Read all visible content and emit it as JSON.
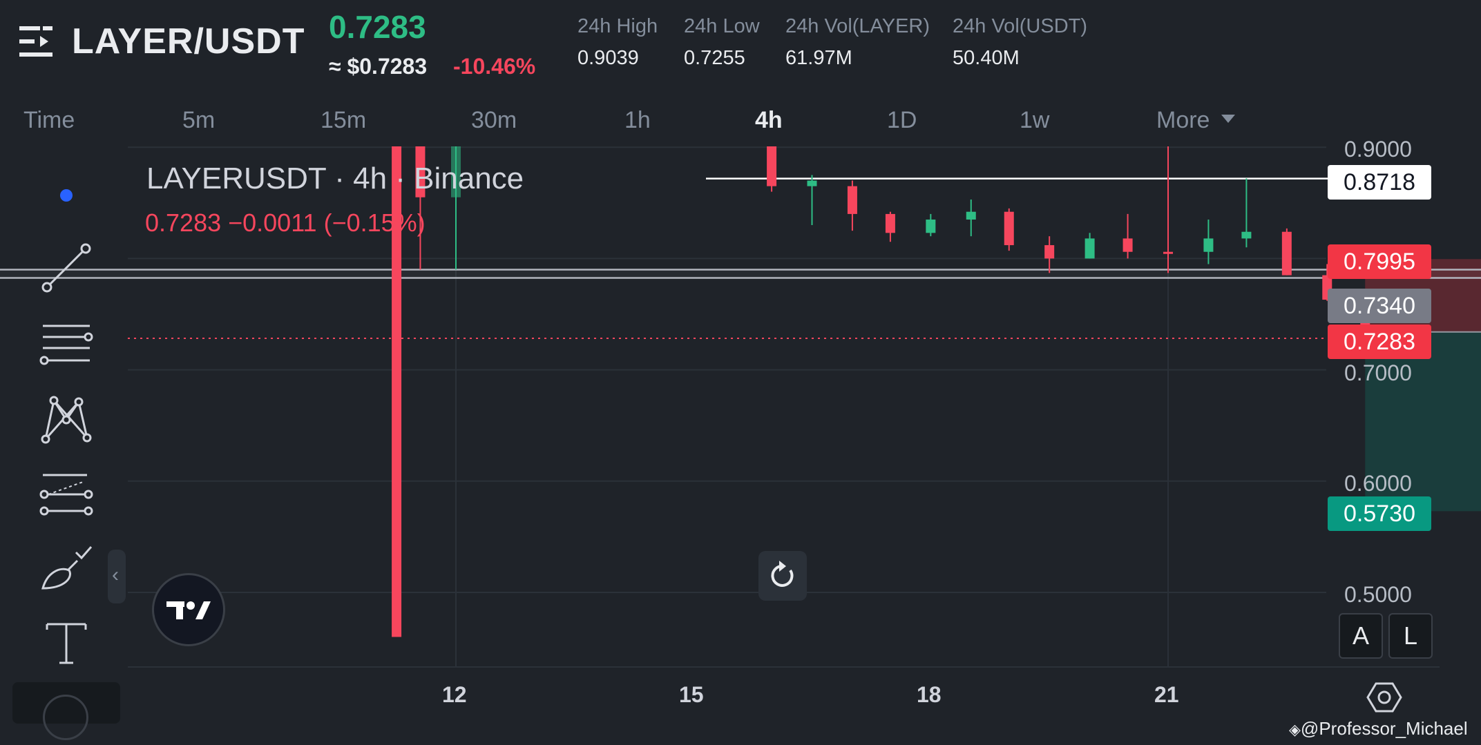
{
  "header": {
    "pair": "LAYER/USDT",
    "last_price": "0.7283",
    "usd_price": "≈ $0.7283",
    "change_pct": "-10.46%",
    "stats": [
      {
        "label": "24h High",
        "value": "0.9039"
      },
      {
        "label": "24h Low",
        "value": "0.7255"
      },
      {
        "label": "24h Vol(LAYER)",
        "value": "61.97M"
      },
      {
        "label": "24h Vol(USDT)",
        "value": "50.40M"
      }
    ]
  },
  "intervals": {
    "items": [
      "Time",
      "5m",
      "15m",
      "30m",
      "1h",
      "4h",
      "1D",
      "1w",
      "More"
    ],
    "active": "4h"
  },
  "legend": {
    "title": "LAYERUSDT · 4h · Binance",
    "values": "0.7283  −0.0011 (−0.15%)"
  },
  "price_axis": {
    "ticks": [
      "0.9000",
      "0.7000",
      "0.6000",
      "0.5000"
    ],
    "badges": [
      {
        "value": "0.8718",
        "color": "#ffffff",
        "text_color": "#131722"
      },
      {
        "value": "0.7995",
        "color": "#f23645"
      },
      {
        "value": "0.7340",
        "color": "#787b86"
      },
      {
        "value": "0.7283",
        "color": "#f23645"
      },
      {
        "value": "0.5730",
        "color": "#089981"
      }
    ]
  },
  "time_axis": {
    "labels": [
      "12",
      "15",
      "18",
      "21"
    ]
  },
  "scale_buttons": [
    "A",
    "L"
  ],
  "watermark": "@Professor_Michael",
  "colors": {
    "up": "#2ebd85",
    "down": "#f6465d",
    "background": "#1f2329"
  },
  "chart_data": {
    "type": "candlestick",
    "interval": "4h",
    "y_range": [
      0.46,
      0.905
    ],
    "x_range": [
      10.2,
      22.0
    ],
    "candles": [
      {
        "t": 11.75,
        "o": 0.905,
        "h": 0.905,
        "l": 0.46,
        "c": 0.46
      },
      {
        "t": 11.85,
        "o": 0.905,
        "h": 0.905,
        "l": 0.79,
        "c": 0.855
      },
      {
        "t": 12.0,
        "o": 0.855,
        "h": 0.905,
        "l": 0.79,
        "c": 0.905
      },
      {
        "t": 13.33,
        "o": 0.905,
        "h": 0.905,
        "l": 0.86,
        "c": 0.865
      },
      {
        "t": 13.5,
        "o": 0.865,
        "h": 0.875,
        "l": 0.83,
        "c": 0.87
      },
      {
        "t": 13.67,
        "o": 0.865,
        "h": 0.87,
        "l": 0.825,
        "c": 0.84
      },
      {
        "t": 13.83,
        "o": 0.84,
        "h": 0.842,
        "l": 0.815,
        "c": 0.823
      },
      {
        "t": 14.0,
        "o": 0.823,
        "h": 0.84,
        "l": 0.82,
        "c": 0.835
      },
      {
        "t": 14.17,
        "o": 0.835,
        "h": 0.853,
        "l": 0.82,
        "c": 0.842
      },
      {
        "t": 14.33,
        "o": 0.842,
        "h": 0.845,
        "l": 0.807,
        "c": 0.812
      },
      {
        "t": 14.5,
        "o": 0.812,
        "h": 0.82,
        "l": 0.787,
        "c": 0.8
      },
      {
        "t": 14.67,
        "o": 0.8,
        "h": 0.823,
        "l": 0.8,
        "c": 0.818
      },
      {
        "t": 14.83,
        "o": 0.818,
        "h": 0.84,
        "l": 0.8,
        "c": 0.806
      },
      {
        "t": 15.0,
        "o": 0.806,
        "h": 0.905,
        "l": 0.787,
        "c": 0.805
      },
      {
        "t": 15.17,
        "o": 0.806,
        "h": 0.835,
        "l": 0.795,
        "c": 0.818
      },
      {
        "t": 15.33,
        "o": 0.818,
        "h": 0.872,
        "l": 0.81,
        "c": 0.824
      },
      {
        "t": 15.5,
        "o": 0.824,
        "h": 0.827,
        "l": 0.785,
        "c": 0.785
      },
      {
        "t": 15.67,
        "o": 0.785,
        "h": 0.795,
        "l": 0.762,
        "c": 0.763
      },
      {
        "t": 15.83,
        "o": 0.762,
        "h": 0.762,
        "l": 0.726,
        "c": 0.73
      }
    ],
    "horizontal_line": 0.8718,
    "zone_rectangle": {
      "t_start": 9.7,
      "t_end": 18.25,
      "top": 0.79,
      "bottom": 0.783
    },
    "position": {
      "t_start": 15.83,
      "t_end": 18.25,
      "stop": 0.7995,
      "entry": 0.734,
      "target": 0.573
    },
    "current_price": 0.7283
  }
}
